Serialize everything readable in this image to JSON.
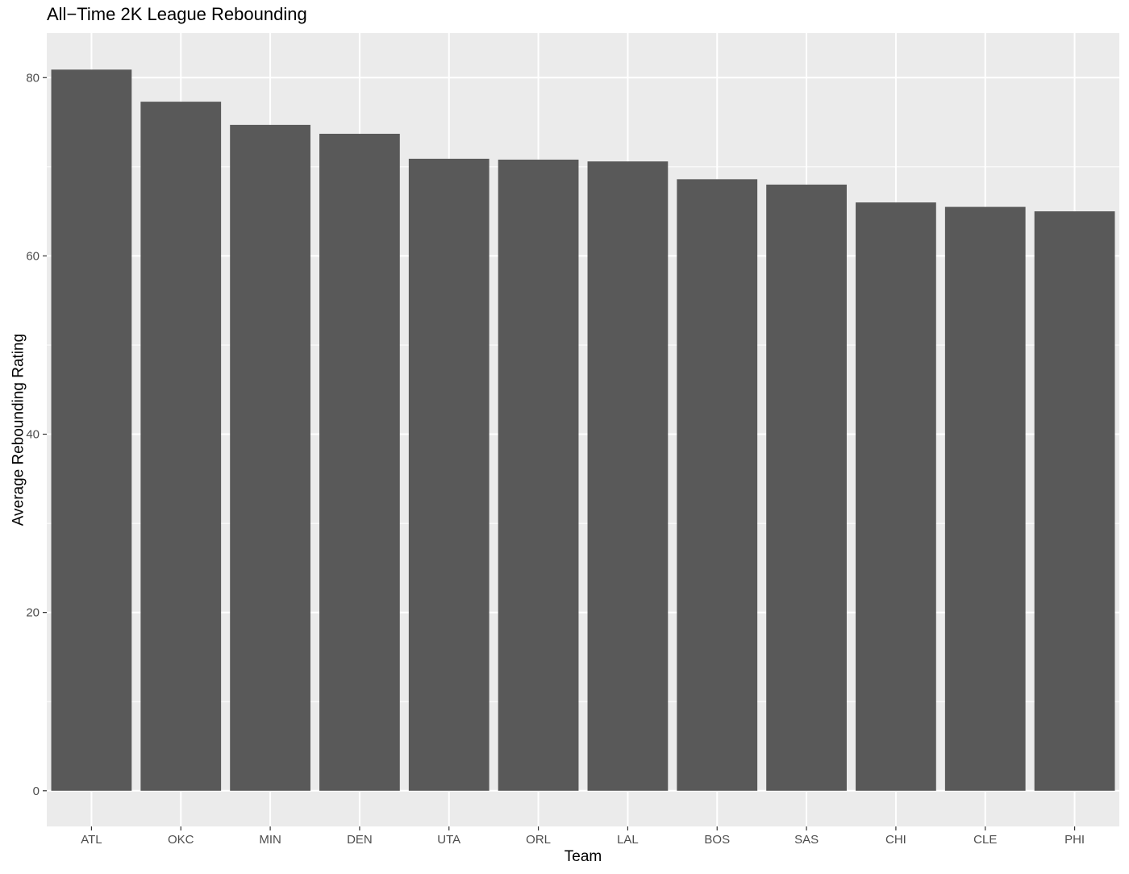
{
  "chart_data": {
    "type": "bar",
    "title": "All−Time 2K League Rebounding",
    "xlabel": "Team",
    "ylabel": "Average Rebounding Rating",
    "categories": [
      "ATL",
      "OKC",
      "MIN",
      "DEN",
      "UTA",
      "ORL",
      "LAL",
      "BOS",
      "SAS",
      "CHI",
      "CLE",
      "PHI"
    ],
    "values": [
      80.9,
      77.3,
      74.7,
      73.7,
      70.9,
      70.8,
      70.6,
      68.6,
      68.0,
      66.0,
      65.5,
      65.0
    ],
    "ylim": [
      -4,
      85
    ],
    "yticks": [
      0,
      20,
      40,
      60,
      80
    ],
    "grid": true,
    "colors": {
      "bar": "#595959",
      "panel": "#ebebeb",
      "grid": "#ffffff"
    }
  }
}
